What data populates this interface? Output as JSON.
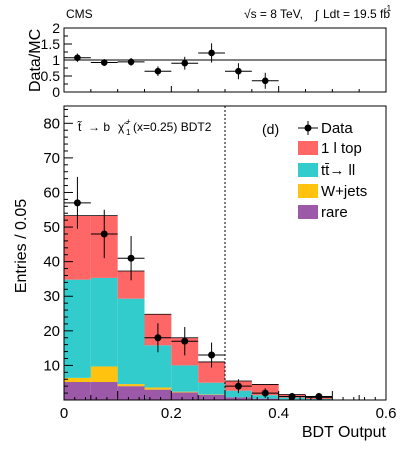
{
  "header": {
    "experiment": "CMS",
    "energy": "√s = 8 TeV,",
    "lumi_integral": "∫",
    "lumi_text": "Ldt = 19.5 fb",
    "lumi_exp": "-1"
  },
  "chart_data": [
    {
      "type": "ratio",
      "ylabel": "Data/MC",
      "ylim": [
        0,
        2
      ],
      "yticks": [
        "0",
        "0.5",
        "1",
        "1.5",
        "2"
      ],
      "reference_line": 1,
      "bin_edges": [
        0,
        0.05,
        0.1,
        0.15,
        0.2,
        0.25,
        0.3,
        0.35,
        0.4
      ],
      "values": [
        1.07,
        0.92,
        0.94,
        0.65,
        0.9,
        1.22,
        0.65,
        0.35
      ],
      "errors": [
        0.13,
        0.11,
        0.12,
        0.15,
        0.2,
        0.3,
        0.25,
        0.25
      ]
    },
    {
      "type": "bar",
      "stacked": true,
      "xlabel": "BDT Output",
      "ylabel": "Entries / 0.05",
      "xlim": [
        0,
        0.6
      ],
      "ylim": [
        0,
        85
      ],
      "xticks": [
        "0",
        "0.2",
        "0.4",
        "0.6"
      ],
      "yticks": [
        "10",
        "20",
        "30",
        "40",
        "50",
        "60",
        "70",
        "80"
      ],
      "bin_edges": [
        0,
        0.05,
        0.1,
        0.15,
        0.2,
        0.25,
        0.3,
        0.35,
        0.4,
        0.45,
        0.5,
        0.55,
        0.6
      ],
      "series": [
        {
          "name": "rare",
          "color": "#9b59a8",
          "values": [
            5.2,
            5.2,
            4.0,
            3.0,
            2.2,
            1.5,
            0.8,
            0.4,
            0.2,
            0.1,
            0,
            0
          ]
        },
        {
          "name": "W+jets",
          "color": "#ffc20e",
          "values": [
            1.2,
            4.5,
            0.6,
            0.6,
            0.2,
            0.1,
            0,
            0,
            0,
            0,
            0,
            0
          ]
        },
        {
          "name": "tt̄→ ll",
          "color": "#33cccc",
          "values": [
            28.4,
            25.6,
            24.7,
            12.2,
            7.6,
            3.4,
            1.9,
            1.0,
            0.5,
            0.2,
            0,
            0
          ]
        },
        {
          "name": "1 l top",
          "color": "#ff6666",
          "values": [
            18.5,
            18.0,
            8.0,
            9.0,
            8.0,
            6.0,
            2.8,
            3.1,
            0.9,
            0.4,
            0,
            0
          ]
        }
      ],
      "data_points": {
        "name": "Data",
        "x": [
          0.025,
          0.075,
          0.125,
          0.175,
          0.225,
          0.275,
          0.325,
          0.375,
          0.425,
          0.475
        ],
        "y": [
          57,
          48,
          41,
          18,
          17,
          13,
          4,
          2,
          1,
          1
        ],
        "yerr": [
          7.5,
          7.0,
          6.4,
          4.2,
          4.1,
          3.6,
          2.0,
          1.4,
          1.0,
          1.0
        ]
      },
      "cut_line": 0.3,
      "panel_tag": "(d)",
      "signal_label": {
        "t": "t̃",
        "arrow": "→ b",
        "chi": "χ̃",
        "chi_sup": "+",
        "chi_sub": "1",
        "params": "(x=0.25) BDT2"
      },
      "legend": [
        {
          "label": "Data",
          "marker": "point"
        },
        {
          "label": "1 l top",
          "color": "#ff6666"
        },
        {
          "label": "tt̄→ ll",
          "color": "#33cccc"
        },
        {
          "label": "W+jets",
          "color": "#ffc20e"
        },
        {
          "label": "rare",
          "color": "#9b59a8"
        }
      ]
    }
  ]
}
